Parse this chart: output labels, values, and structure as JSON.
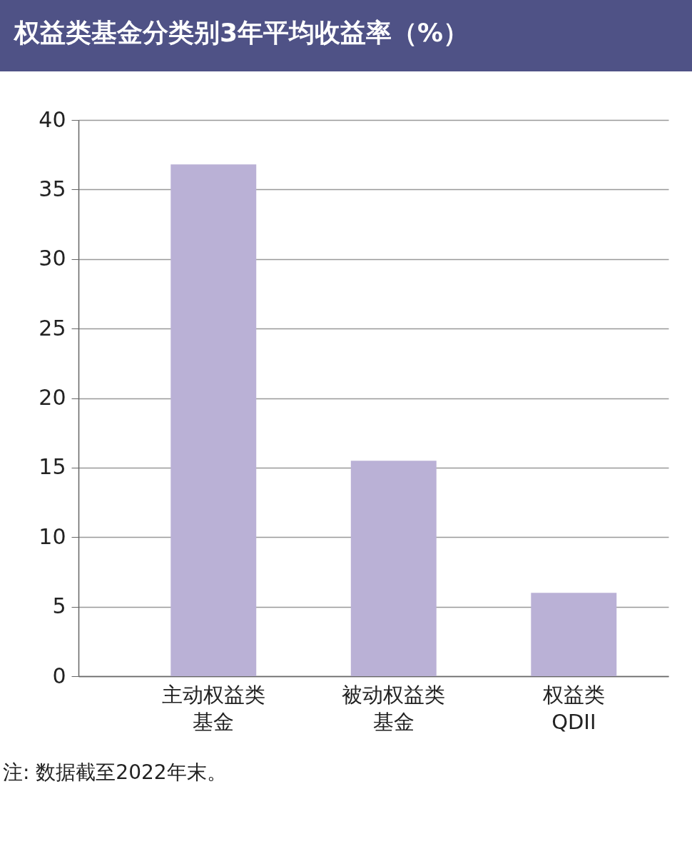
{
  "chart_data": {
    "type": "bar",
    "title": "权益类基金分类别3年平均收益率（%）",
    "categories": [
      "主动权益类基金",
      "被动权益类基金",
      "权益类QDII"
    ],
    "values": [
      36.8,
      15.5,
      6.0
    ],
    "color": "#bab1d6",
    "ylim": [
      0,
      40
    ],
    "yticks": [
      0,
      5,
      10,
      15,
      20,
      25,
      30,
      35,
      40
    ],
    "grid": "y",
    "annotations": [
      "注: 数据截至2022年末。"
    ]
  }
}
